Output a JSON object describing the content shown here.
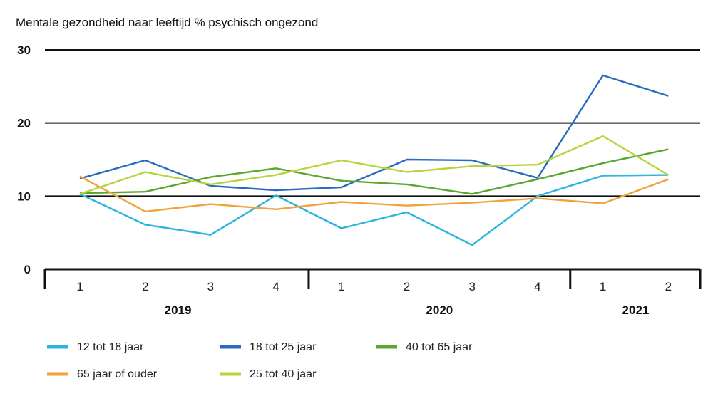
{
  "chart_data": {
    "type": "line",
    "title": "Mentale gezondheid naar leeftijd % psychisch ongezond",
    "xlabel": "",
    "ylabel": "",
    "ylim": [
      0,
      30
    ],
    "yticks": [
      "30",
      "20",
      "10",
      "0"
    ],
    "x": [
      "1",
      "2",
      "3",
      "4",
      "1",
      "2",
      "3",
      "4",
      "1",
      "2"
    ],
    "groups": [
      {
        "label": "2019",
        "quarters": 4
      },
      {
        "label": "2020",
        "quarters": 4
      },
      {
        "label": "2021",
        "quarters": 2
      }
    ],
    "grid": true,
    "legend_position": "bottom",
    "series": [
      {
        "name": "12 tot 18 jaar",
        "color": "#2ab4de",
        "values": [
          10.3,
          6.1,
          4.7,
          10.1,
          5.6,
          7.8,
          3.3,
          10.0,
          12.8,
          12.9
        ]
      },
      {
        "name": "18 tot 25 jaar",
        "color": "#2a6bbf",
        "values": [
          12.4,
          14.9,
          11.4,
          10.8,
          11.2,
          15.0,
          14.9,
          12.5,
          26.5,
          23.7
        ]
      },
      {
        "name": "40 tot 65 jaar",
        "color": "#5aa630",
        "values": [
          10.4,
          10.6,
          12.6,
          13.8,
          12.1,
          11.6,
          10.3,
          12.3,
          14.5,
          16.4
        ]
      },
      {
        "name": "65 jaar of ouder",
        "color": "#f2a23a",
        "values": [
          12.7,
          7.9,
          8.9,
          8.2,
          9.2,
          8.7,
          9.1,
          9.7,
          9.0,
          12.3
        ]
      },
      {
        "name": "25 tot 40 jaar",
        "color": "#b7d43b",
        "values": [
          10.3,
          13.3,
          11.6,
          12.9,
          14.9,
          13.3,
          14.1,
          14.3,
          18.2,
          12.9
        ]
      }
    ]
  }
}
